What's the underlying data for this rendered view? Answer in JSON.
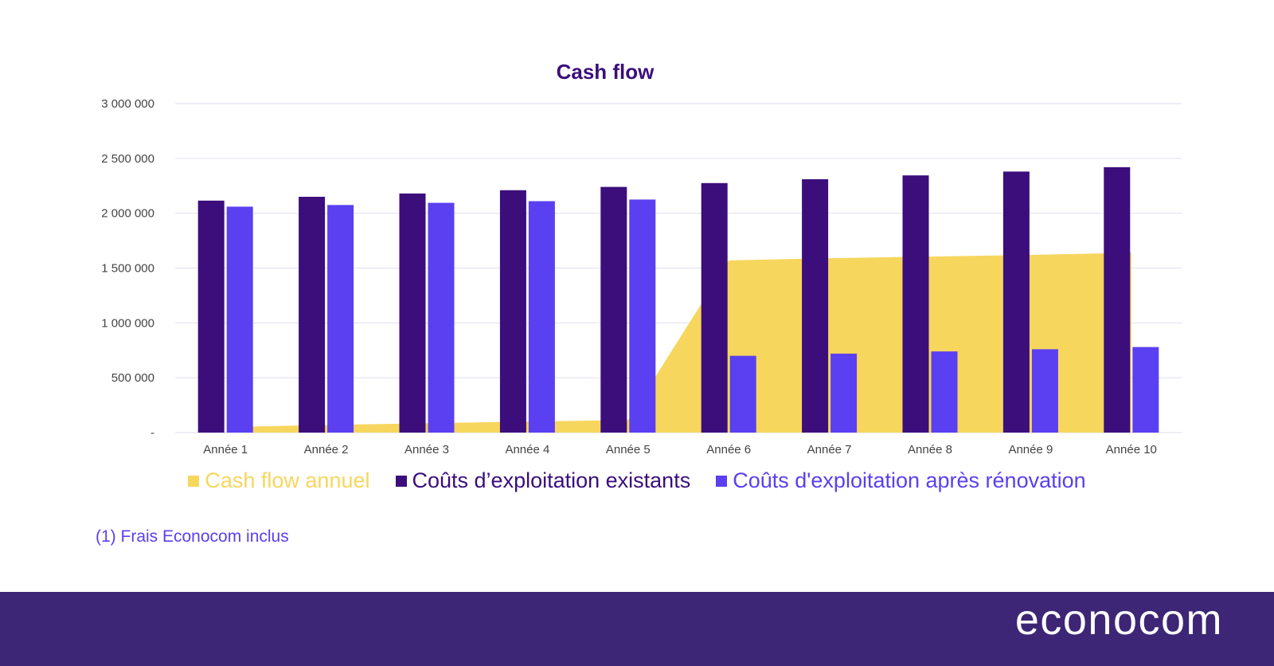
{
  "colors": {
    "cashflow": "#f7d65e",
    "existing": "#3b0e7c",
    "renovation": "#5a40f0",
    "title": "#3b0e7c",
    "grid": "#e3e3f1",
    "footer": "#3d2675"
  },
  "chart_data": {
    "type": "bar",
    "title": "Cash flow",
    "categories": [
      "Année 1",
      "Année 2",
      "Année 3",
      "Année 4",
      "Année 5",
      "Année 6",
      "Année 7",
      "Année 8",
      "Année 9",
      "Année 10"
    ],
    "ylim": [
      0,
      3000000
    ],
    "yticks": [
      0,
      500000,
      1000000,
      1500000,
      2000000,
      2500000,
      3000000
    ],
    "ytick_labels": [
      "-",
      "500 000",
      "1 000 000",
      "1 500 000",
      "2 000 000",
      "2 500 000",
      "3 000 000"
    ],
    "grid": true,
    "legend_position": "bottom",
    "series": [
      {
        "name": "Cash flow annuel",
        "kind": "area",
        "color": "#f7d65e",
        "values": [
          50000,
          70000,
          85000,
          100000,
          115000,
          1570000,
          1590000,
          1605000,
          1620000,
          1640000
        ]
      },
      {
        "name": "Coûts d’exploitation existants",
        "kind": "bar",
        "color": "#3b0e7c",
        "values": [
          2115000,
          2150000,
          2180000,
          2210000,
          2240000,
          2275000,
          2310000,
          2345000,
          2380000,
          2420000
        ]
      },
      {
        "name": "Coûts d'exploitation après rénovation",
        "kind": "bar",
        "color": "#5a40f0",
        "values": [
          2060000,
          2075000,
          2095000,
          2110000,
          2125000,
          700000,
          720000,
          740000,
          760000,
          780000
        ]
      }
    ]
  },
  "footnote": "(1) Frais Econocom inclus",
  "footer": {
    "logo_text": "econocom"
  }
}
